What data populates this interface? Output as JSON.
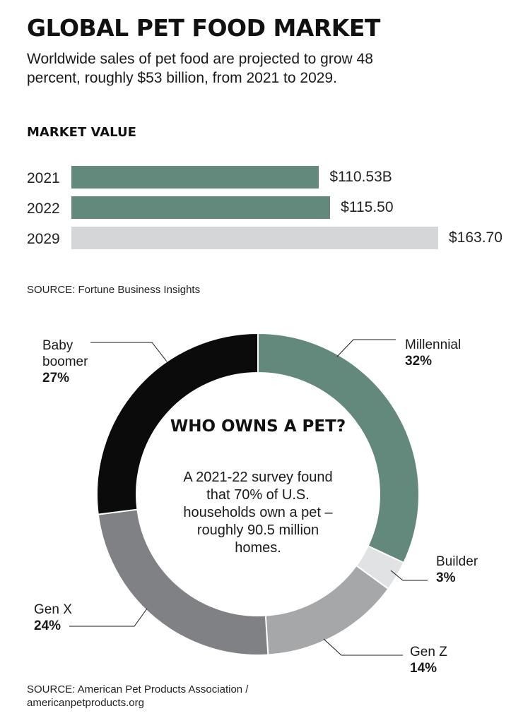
{
  "header": {
    "title": "GLOBAL PET FOOD MARKET",
    "subtitle": "Worldwide sales of pet food are projected to grow 48 percent, roughly $53 billion, from 2021 to 2029."
  },
  "market_section": {
    "title": "MARKET VALUE",
    "source": "SOURCE: Fortune Business Insights"
  },
  "center": {
    "title": "WHO OWNS A PET?",
    "text": "A 2021-22 survey found that 70% of U.S. households own a pet – roughly 90.5 million homes."
  },
  "donut_source": {
    "line1": "SOURCE: American Pet Products Association /",
    "line2": "americanpetproducts.org"
  },
  "colors": {
    "bar_actual": "#62897c",
    "bar_projected": "#d5d6d8",
    "millennial": "#62897c",
    "builder": "#e1e2e3",
    "gen_z": "#a6a7a9",
    "gen_x": "#808184",
    "baby_boomer": "#0b0b0b"
  },
  "chart_data": [
    {
      "type": "bar",
      "orientation": "horizontal",
      "title": "MARKET VALUE",
      "categories": [
        "2021",
        "2022",
        "2029"
      ],
      "values": [
        110.53,
        115.5,
        163.7
      ],
      "value_labels": [
        "$110.53B",
        "$115.50",
        "$163.70"
      ],
      "projected": [
        false,
        false,
        true
      ],
      "unit": "billion USD"
    },
    {
      "type": "pie",
      "style": "donut",
      "title": "WHO OWNS A PET?",
      "slices": [
        {
          "name": "Millennial",
          "value": 32,
          "label": "32%",
          "color": "#62897c"
        },
        {
          "name": "Builder",
          "value": 3,
          "label": "3%",
          "color": "#e1e2e3"
        },
        {
          "name": "Gen Z",
          "value": 14,
          "label": "14%",
          "color": "#a6a7a9"
        },
        {
          "name": "Gen X",
          "value": 24,
          "label": "24%",
          "color": "#808184"
        },
        {
          "name": "Baby boomer",
          "value": 27,
          "label": "27%",
          "color": "#0b0b0b"
        }
      ]
    }
  ]
}
